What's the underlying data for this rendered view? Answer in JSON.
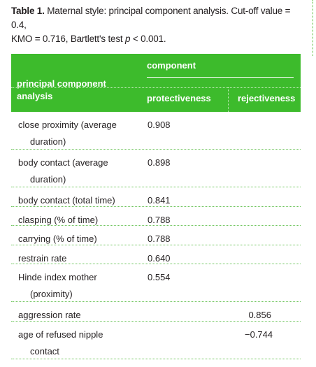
{
  "caption": {
    "label": "Table 1.",
    "text_a": " Maternal style: principal component analysis. Cut-off value = 0.4,",
    "text_b": "KMO = 0.716, Bartlett's test ",
    "p": "p",
    "text_c": " < 0.001."
  },
  "header": {
    "component": "component",
    "pca_line1": "principal component",
    "pca_line2": "analysis",
    "col1": "protectiveness",
    "col2": "rejectiveness"
  },
  "rows": [
    {
      "l1": "close proximity (average",
      "l2": "duration)",
      "v1": "0.908",
      "v2": ""
    },
    {
      "l1": "body contact (average",
      "l2": "duration)",
      "v1": "0.898",
      "v2": ""
    },
    {
      "l1": "body contact (total time)",
      "l2": "",
      "v1": "0.841",
      "v2": ""
    },
    {
      "l1": "clasping (% of time)",
      "l2": "",
      "v1": "0.788",
      "v2": ""
    },
    {
      "l1": "carrying (% of time)",
      "l2": "",
      "v1": "0.788",
      "v2": ""
    },
    {
      "l1": "restrain rate",
      "l2": "",
      "v1": "0.640",
      "v2": ""
    },
    {
      "l1": "Hinde index mother",
      "l2": "(proximity)",
      "v1": "0.554",
      "v2": ""
    },
    {
      "l1": "aggression rate",
      "l2": "",
      "v1": "",
      "v2": "0.856"
    },
    {
      "l1": "age of refused nipple",
      "l2": "contact",
      "v1": "",
      "v2": "−0.744"
    }
  ]
}
